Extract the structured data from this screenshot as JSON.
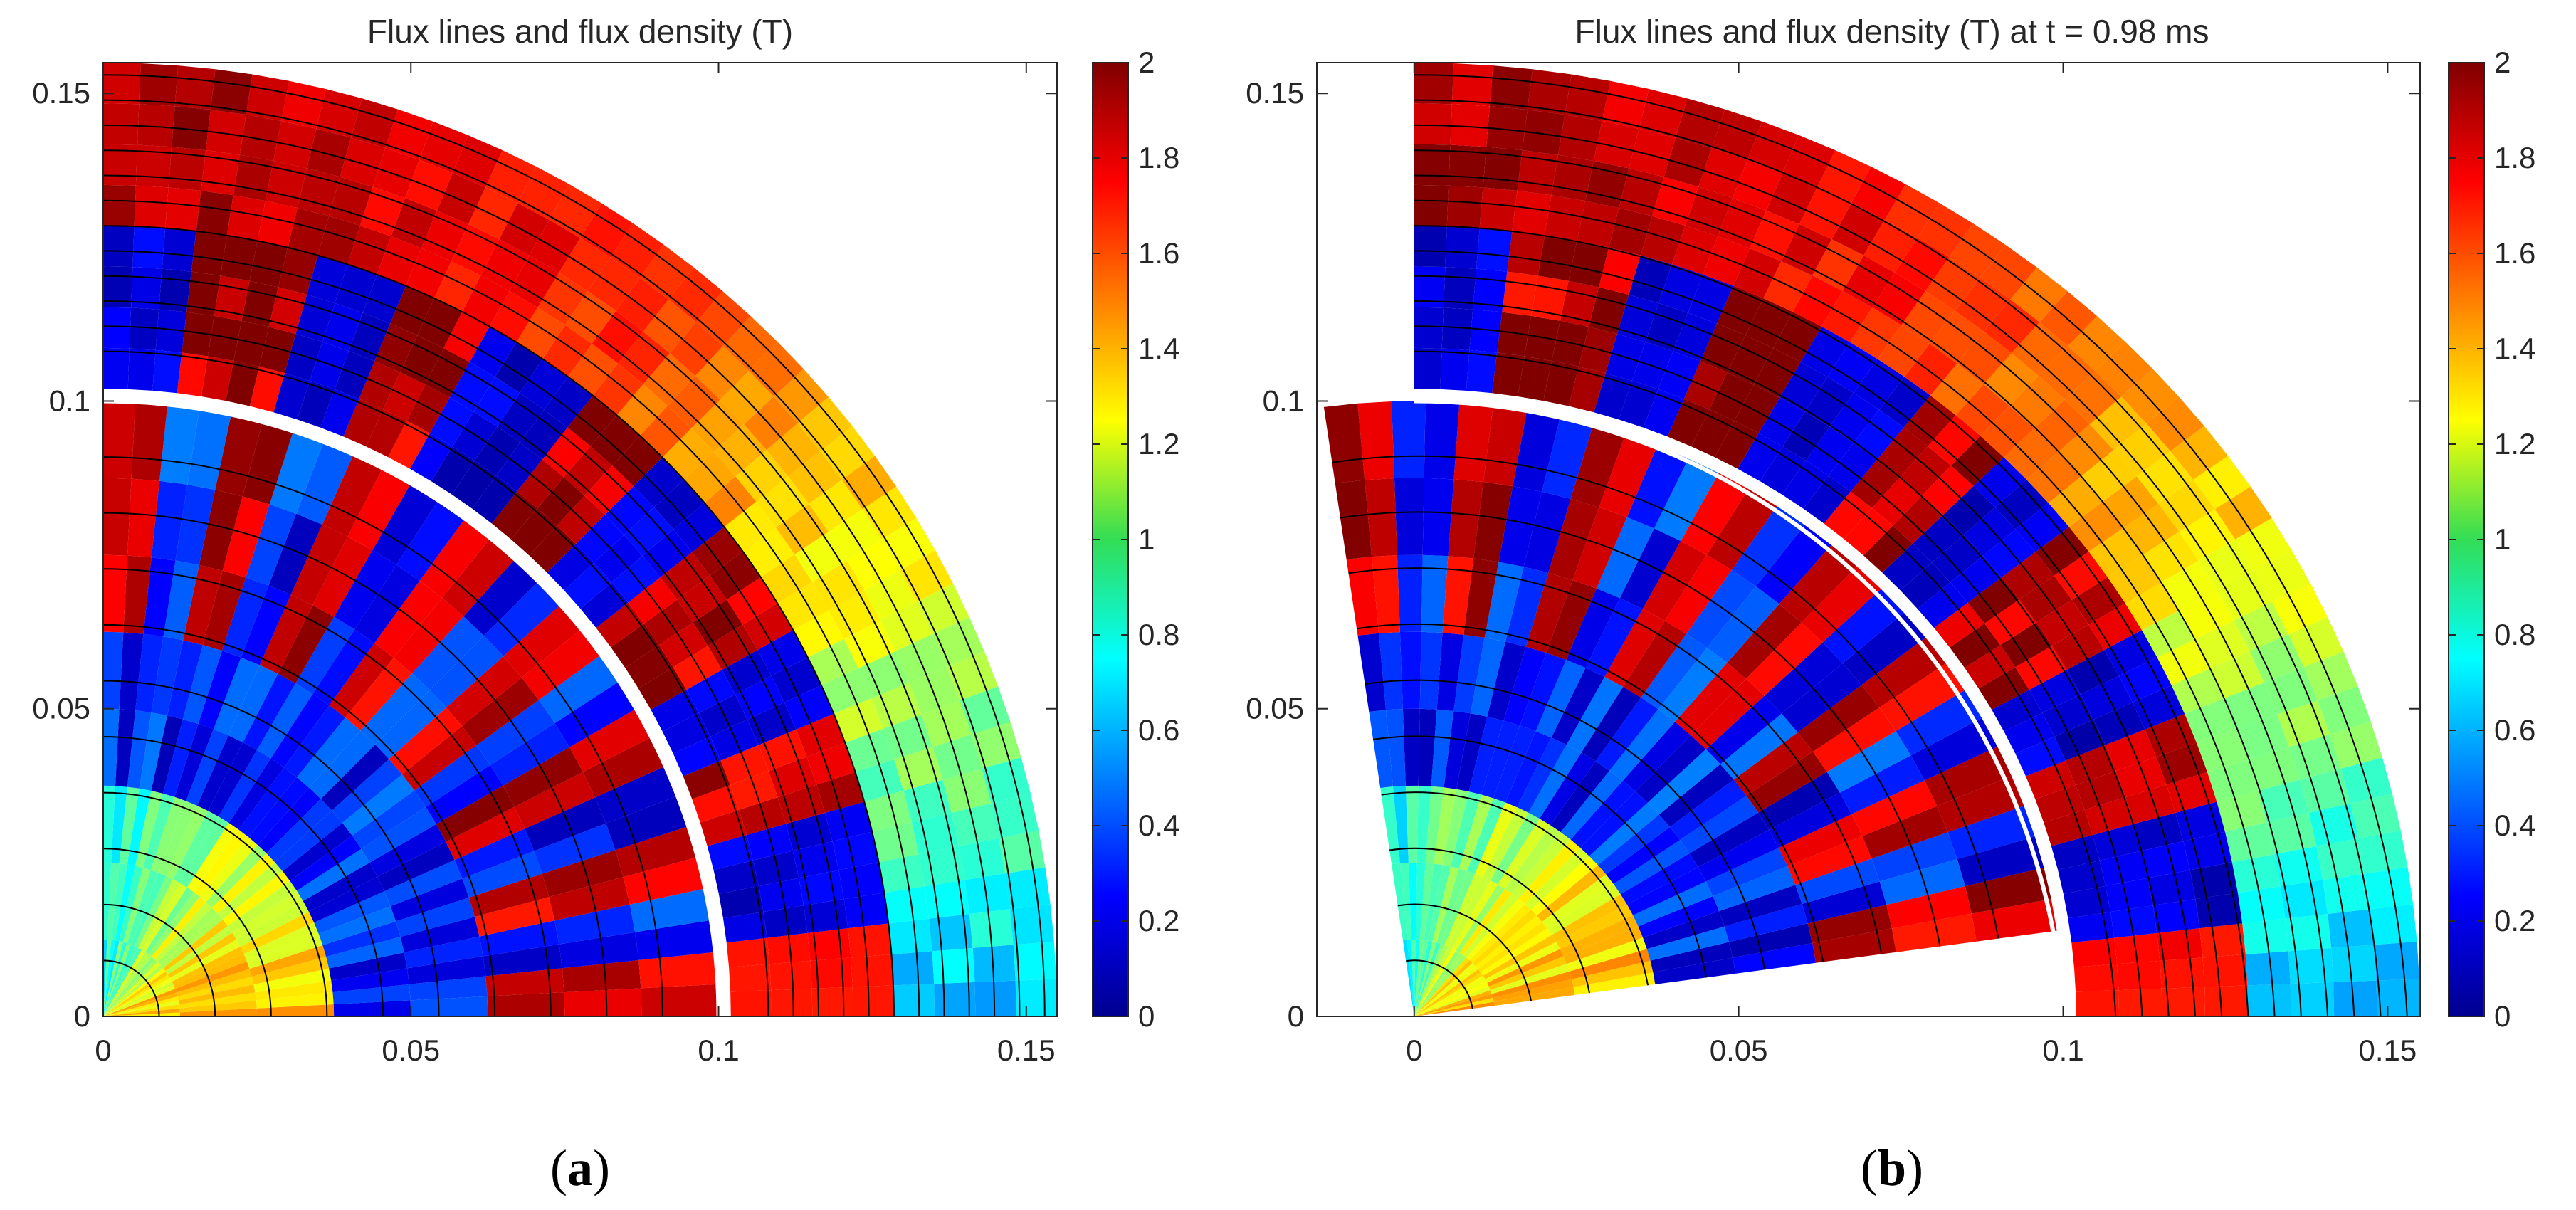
{
  "chart_data": [
    {
      "type": "heatmap",
      "panel_label": "a",
      "title": "Flux lines and flux density (T)",
      "xlabel": "",
      "ylabel": "",
      "xlim": [
        0,
        0.155
      ],
      "ylim": [
        0,
        0.155
      ],
      "x_ticks": [
        "0",
        "0.05",
        "0.1",
        "0.15"
      ],
      "y_ticks": [
        "0",
        "0.05",
        "0.1",
        "0.15"
      ],
      "colorbar": {
        "min": 0,
        "max": 2,
        "ticks": [
          "0",
          "0.2",
          "0.4",
          "0.6",
          "0.8",
          "1",
          "1.2",
          "1.4",
          "1.6",
          "1.8",
          "2"
        ],
        "colormap": "jet"
      },
      "geometry": {
        "rotor_outer_radius": 0.1,
        "stator_outer_radius": 0.155,
        "rotor_angle_deg": 0,
        "slot_count": 12
      },
      "grid": false
    },
    {
      "type": "heatmap",
      "panel_label": "b",
      "title": "Flux lines and flux density (T) at t = 0.98 ms",
      "xlabel": "",
      "ylabel": "",
      "xlim": [
        -0.015,
        0.155
      ],
      "ylim": [
        0,
        0.155
      ],
      "x_ticks": [
        "0",
        "0.05",
        "0.1",
        "0.15"
      ],
      "y_ticks": [
        "0",
        "0.05",
        "0.1",
        "0.15"
      ],
      "colorbar": {
        "min": 0,
        "max": 2,
        "ticks": [
          "0",
          "0.2",
          "0.4",
          "0.6",
          "0.8",
          "1",
          "1.2",
          "1.4",
          "1.6",
          "1.8",
          "2"
        ],
        "colormap": "jet"
      },
      "geometry": {
        "rotor_outer_radius": 0.1,
        "stator_outer_radius": 0.155,
        "rotor_angle_deg": 8,
        "slot_count": 12
      },
      "grid": false
    }
  ],
  "captions": {
    "a": "a",
    "b": "b"
  }
}
